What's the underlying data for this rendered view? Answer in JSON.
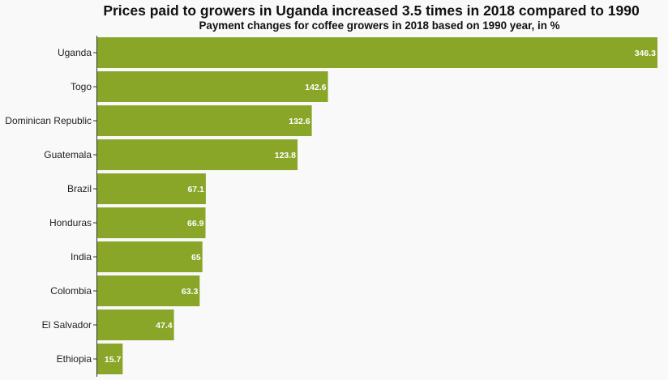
{
  "chart_data": {
    "type": "bar",
    "orientation": "horizontal",
    "title": "Prices paid to growers in Uganda increased 3.5 times in 2018 compared to 1990",
    "subtitle": "Payment changes for coffee growers in 2018 based on 1990 year, in %",
    "categories": [
      "Uganda",
      "Togo",
      "Dominican Republic",
      "Guatemala",
      "Brazil",
      "Honduras",
      "India",
      "Colombia",
      "El Salvador",
      "Ethiopia"
    ],
    "values": [
      346.3,
      142.6,
      132.6,
      123.8,
      67.1,
      66.9,
      65,
      63.3,
      47.4,
      15.7
    ],
    "value_labels": [
      "346.3",
      "142.6",
      "132.6",
      "123.8",
      "67.1",
      "66.9",
      "65",
      "63.3",
      "47.4",
      "15.7"
    ],
    "xlim": [
      0,
      346.3
    ],
    "bar_color": "#8aa628",
    "value_label_color": "#ffffff",
    "grid": false,
    "legend": false
  }
}
